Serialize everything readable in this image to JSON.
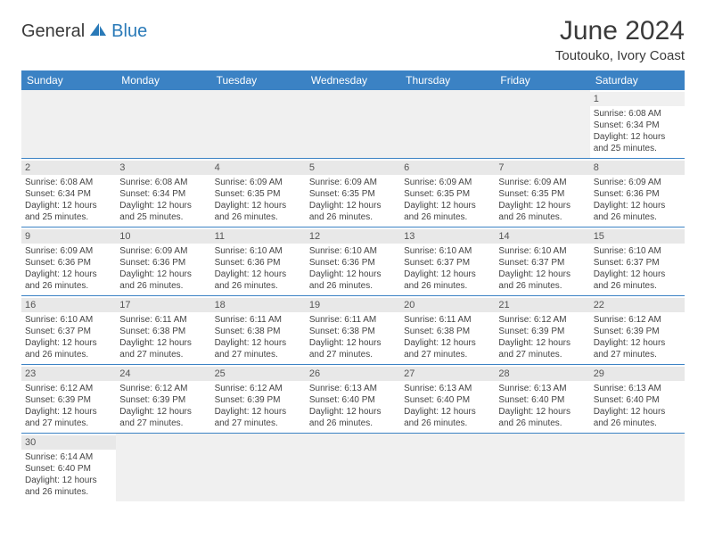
{
  "logo": {
    "text1": "General",
    "text2": "Blue",
    "sail_color": "#2a7ab8"
  },
  "title": "June 2024",
  "location": "Toutouko, Ivory Coast",
  "header_bg": "#3b82c4",
  "day_names": [
    "Sunday",
    "Monday",
    "Tuesday",
    "Wednesday",
    "Thursday",
    "Friday",
    "Saturday"
  ],
  "weeks": [
    [
      null,
      null,
      null,
      null,
      null,
      null,
      {
        "n": "1",
        "sr": "Sunrise: 6:08 AM",
        "ss": "Sunset: 6:34 PM",
        "d1": "Daylight: 12 hours",
        "d2": "and 25 minutes."
      }
    ],
    [
      {
        "n": "2",
        "sr": "Sunrise: 6:08 AM",
        "ss": "Sunset: 6:34 PM",
        "d1": "Daylight: 12 hours",
        "d2": "and 25 minutes."
      },
      {
        "n": "3",
        "sr": "Sunrise: 6:08 AM",
        "ss": "Sunset: 6:34 PM",
        "d1": "Daylight: 12 hours",
        "d2": "and 25 minutes."
      },
      {
        "n": "4",
        "sr": "Sunrise: 6:09 AM",
        "ss": "Sunset: 6:35 PM",
        "d1": "Daylight: 12 hours",
        "d2": "and 26 minutes."
      },
      {
        "n": "5",
        "sr": "Sunrise: 6:09 AM",
        "ss": "Sunset: 6:35 PM",
        "d1": "Daylight: 12 hours",
        "d2": "and 26 minutes."
      },
      {
        "n": "6",
        "sr": "Sunrise: 6:09 AM",
        "ss": "Sunset: 6:35 PM",
        "d1": "Daylight: 12 hours",
        "d2": "and 26 minutes."
      },
      {
        "n": "7",
        "sr": "Sunrise: 6:09 AM",
        "ss": "Sunset: 6:35 PM",
        "d1": "Daylight: 12 hours",
        "d2": "and 26 minutes."
      },
      {
        "n": "8",
        "sr": "Sunrise: 6:09 AM",
        "ss": "Sunset: 6:36 PM",
        "d1": "Daylight: 12 hours",
        "d2": "and 26 minutes."
      }
    ],
    [
      {
        "n": "9",
        "sr": "Sunrise: 6:09 AM",
        "ss": "Sunset: 6:36 PM",
        "d1": "Daylight: 12 hours",
        "d2": "and 26 minutes."
      },
      {
        "n": "10",
        "sr": "Sunrise: 6:09 AM",
        "ss": "Sunset: 6:36 PM",
        "d1": "Daylight: 12 hours",
        "d2": "and 26 minutes."
      },
      {
        "n": "11",
        "sr": "Sunrise: 6:10 AM",
        "ss": "Sunset: 6:36 PM",
        "d1": "Daylight: 12 hours",
        "d2": "and 26 minutes."
      },
      {
        "n": "12",
        "sr": "Sunrise: 6:10 AM",
        "ss": "Sunset: 6:36 PM",
        "d1": "Daylight: 12 hours",
        "d2": "and 26 minutes."
      },
      {
        "n": "13",
        "sr": "Sunrise: 6:10 AM",
        "ss": "Sunset: 6:37 PM",
        "d1": "Daylight: 12 hours",
        "d2": "and 26 minutes."
      },
      {
        "n": "14",
        "sr": "Sunrise: 6:10 AM",
        "ss": "Sunset: 6:37 PM",
        "d1": "Daylight: 12 hours",
        "d2": "and 26 minutes."
      },
      {
        "n": "15",
        "sr": "Sunrise: 6:10 AM",
        "ss": "Sunset: 6:37 PM",
        "d1": "Daylight: 12 hours",
        "d2": "and 26 minutes."
      }
    ],
    [
      {
        "n": "16",
        "sr": "Sunrise: 6:10 AM",
        "ss": "Sunset: 6:37 PM",
        "d1": "Daylight: 12 hours",
        "d2": "and 26 minutes."
      },
      {
        "n": "17",
        "sr": "Sunrise: 6:11 AM",
        "ss": "Sunset: 6:38 PM",
        "d1": "Daylight: 12 hours",
        "d2": "and 27 minutes."
      },
      {
        "n": "18",
        "sr": "Sunrise: 6:11 AM",
        "ss": "Sunset: 6:38 PM",
        "d1": "Daylight: 12 hours",
        "d2": "and 27 minutes."
      },
      {
        "n": "19",
        "sr": "Sunrise: 6:11 AM",
        "ss": "Sunset: 6:38 PM",
        "d1": "Daylight: 12 hours",
        "d2": "and 27 minutes."
      },
      {
        "n": "20",
        "sr": "Sunrise: 6:11 AM",
        "ss": "Sunset: 6:38 PM",
        "d1": "Daylight: 12 hours",
        "d2": "and 27 minutes."
      },
      {
        "n": "21",
        "sr": "Sunrise: 6:12 AM",
        "ss": "Sunset: 6:39 PM",
        "d1": "Daylight: 12 hours",
        "d2": "and 27 minutes."
      },
      {
        "n": "22",
        "sr": "Sunrise: 6:12 AM",
        "ss": "Sunset: 6:39 PM",
        "d1": "Daylight: 12 hours",
        "d2": "and 27 minutes."
      }
    ],
    [
      {
        "n": "23",
        "sr": "Sunrise: 6:12 AM",
        "ss": "Sunset: 6:39 PM",
        "d1": "Daylight: 12 hours",
        "d2": "and 27 minutes."
      },
      {
        "n": "24",
        "sr": "Sunrise: 6:12 AM",
        "ss": "Sunset: 6:39 PM",
        "d1": "Daylight: 12 hours",
        "d2": "and 27 minutes."
      },
      {
        "n": "25",
        "sr": "Sunrise: 6:12 AM",
        "ss": "Sunset: 6:39 PM",
        "d1": "Daylight: 12 hours",
        "d2": "and 27 minutes."
      },
      {
        "n": "26",
        "sr": "Sunrise: 6:13 AM",
        "ss": "Sunset: 6:40 PM",
        "d1": "Daylight: 12 hours",
        "d2": "and 26 minutes."
      },
      {
        "n": "27",
        "sr": "Sunrise: 6:13 AM",
        "ss": "Sunset: 6:40 PM",
        "d1": "Daylight: 12 hours",
        "d2": "and 26 minutes."
      },
      {
        "n": "28",
        "sr": "Sunrise: 6:13 AM",
        "ss": "Sunset: 6:40 PM",
        "d1": "Daylight: 12 hours",
        "d2": "and 26 minutes."
      },
      {
        "n": "29",
        "sr": "Sunrise: 6:13 AM",
        "ss": "Sunset: 6:40 PM",
        "d1": "Daylight: 12 hours",
        "d2": "and 26 minutes."
      }
    ],
    [
      {
        "n": "30",
        "sr": "Sunrise: 6:14 AM",
        "ss": "Sunset: 6:40 PM",
        "d1": "Daylight: 12 hours",
        "d2": "and 26 minutes."
      },
      null,
      null,
      null,
      null,
      null,
      null
    ]
  ]
}
